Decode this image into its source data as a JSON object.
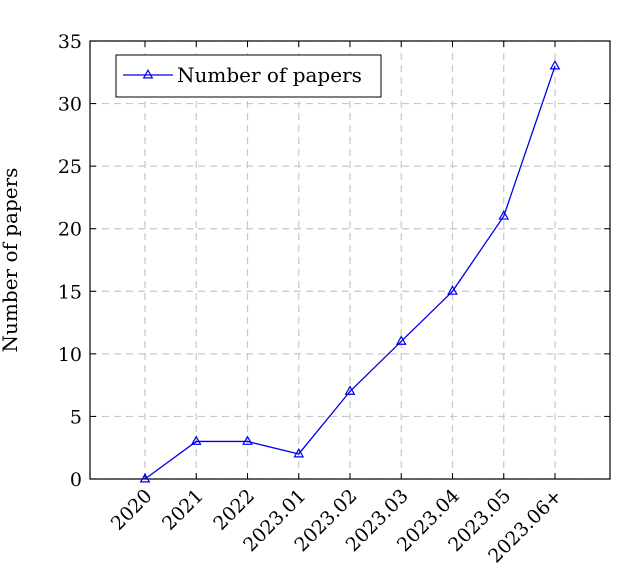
{
  "chart_data": {
    "type": "line",
    "categories": [
      "2020",
      "2021",
      "2022",
      "2023.01",
      "2023.02",
      "2023.03",
      "2023.04",
      "2023.05",
      "2023.06+"
    ],
    "series": [
      {
        "name": "Number of papers",
        "values": [
          0,
          3,
          3,
          2,
          7,
          11,
          15,
          21,
          33
        ],
        "color": "#0000ee",
        "marker": "triangle"
      }
    ],
    "title": "",
    "xlabel": "",
    "ylabel": "Number of papers",
    "ylim": [
      0,
      35
    ],
    "yticks": [
      0,
      5,
      10,
      15,
      20,
      25,
      30,
      35
    ],
    "grid": true,
    "grid_style": "dashed",
    "legend_position": "top-left"
  }
}
